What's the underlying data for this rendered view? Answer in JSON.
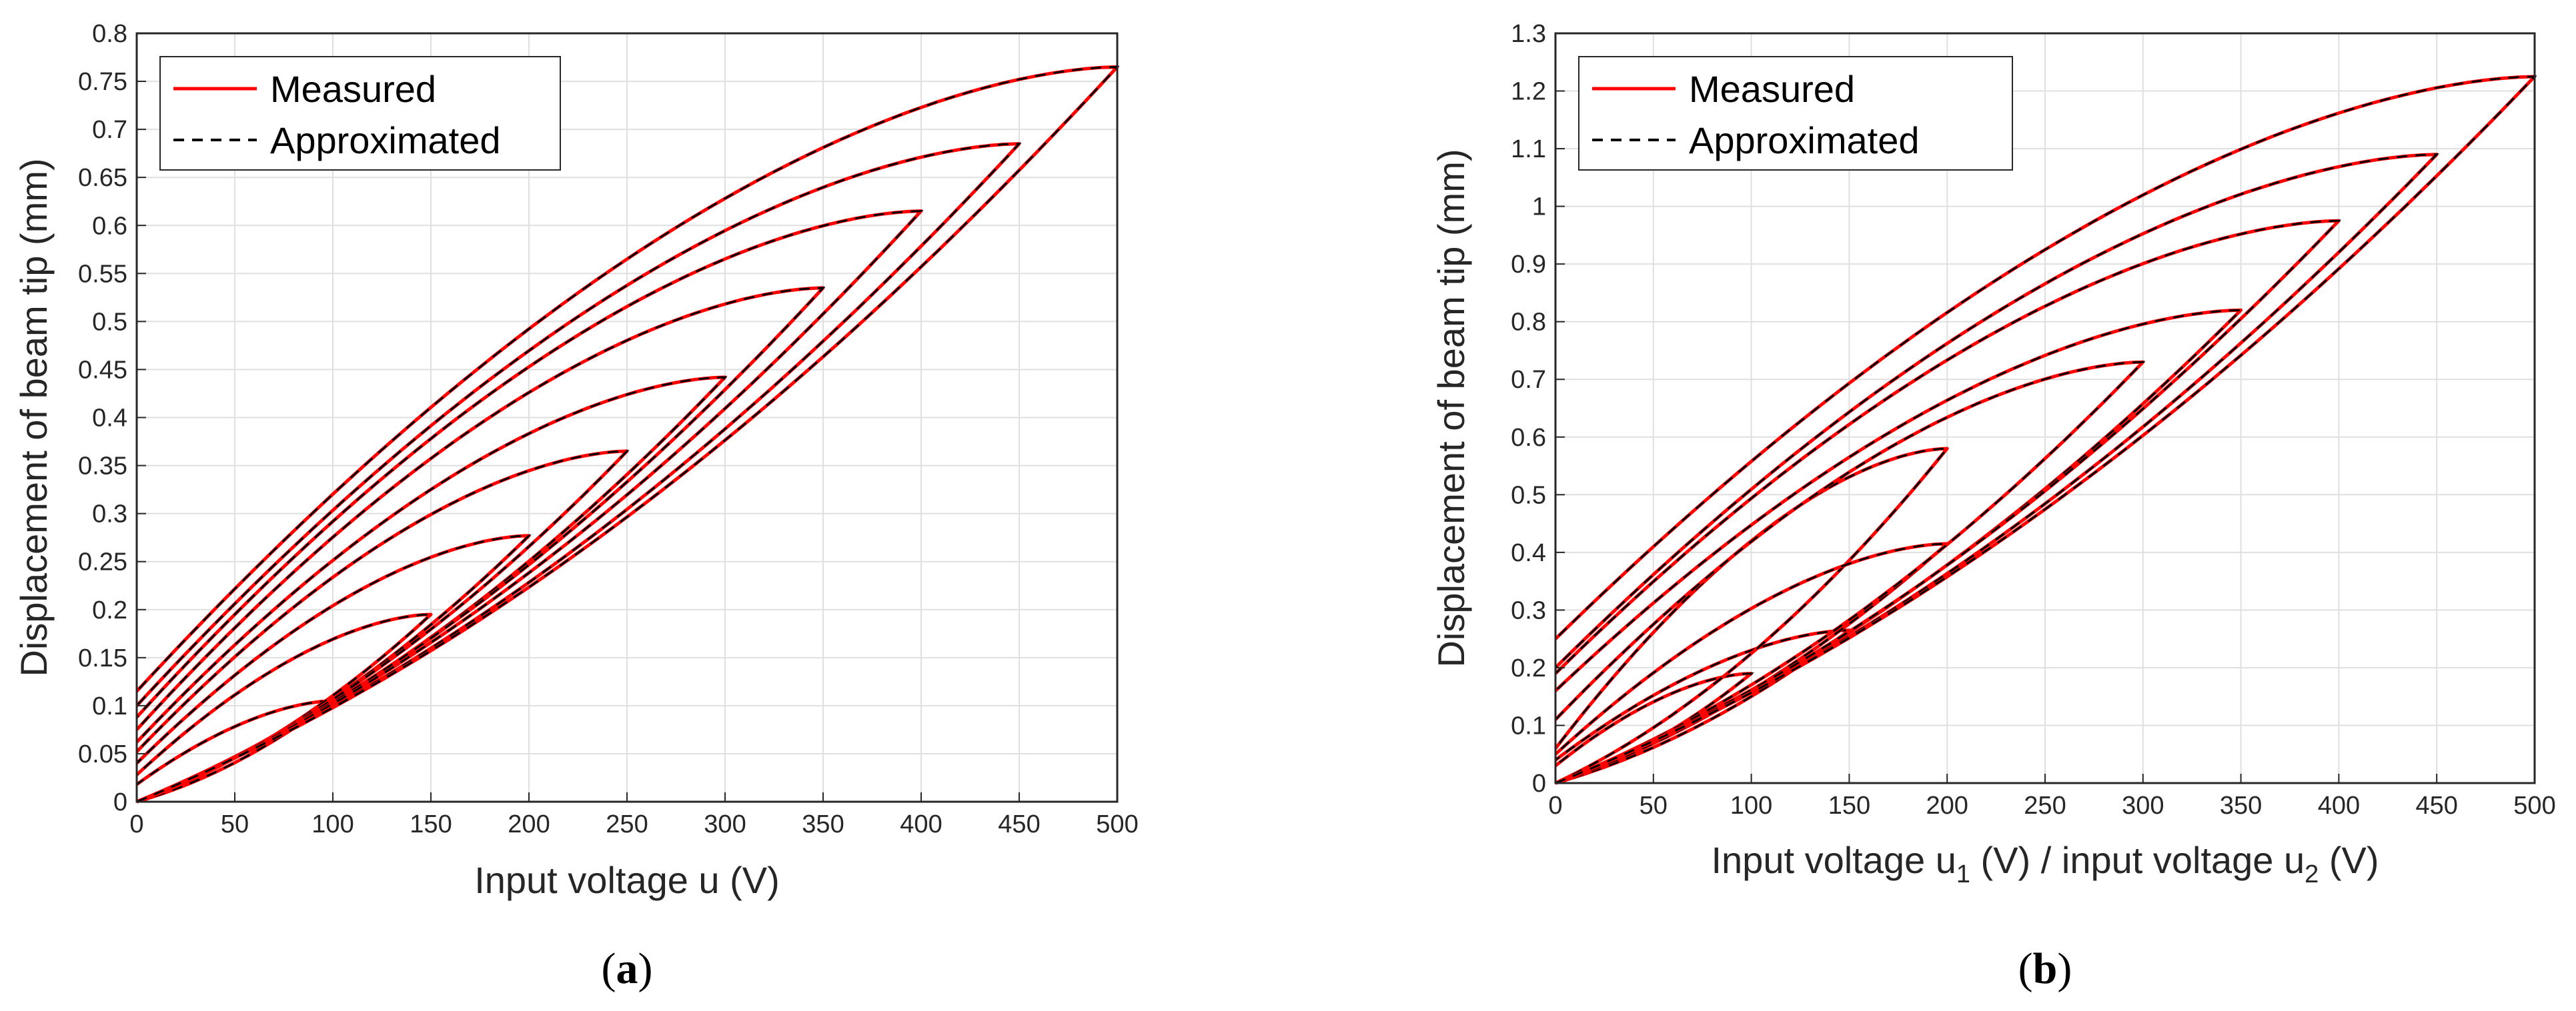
{
  "colors": {
    "measured": "#ff0000",
    "approximated": "#000000",
    "grid": "#dfdfdf",
    "axis": "#262626"
  },
  "chart_data": [
    {
      "type": "line",
      "panel_label": "a",
      "xlabel": "Input voltage u (V)",
      "ylabel": "Displacement of beam tip (mm)",
      "xlim": [
        0,
        500
      ],
      "ylim": [
        0,
        0.8
      ],
      "xticks": [
        "0",
        "50",
        "100",
        "150",
        "200",
        "250",
        "300",
        "350",
        "400",
        "450",
        "500"
      ],
      "yticks": [
        "0",
        "0.05",
        "0.1",
        "0.15",
        "0.2",
        "0.25",
        "0.3",
        "0.35",
        "0.4",
        "0.45",
        "0.5",
        "0.55",
        "0.6",
        "0.65",
        "0.7",
        "0.75",
        "0.8"
      ],
      "grid": true,
      "legend": {
        "position": "top-left",
        "entries": [
          "Measured",
          "Approximated"
        ]
      },
      "series": [
        {
          "name": "Measured",
          "style": "solid"
        },
        {
          "name": "Approximated",
          "style": "dashed"
        }
      ],
      "hysteresis_loops": [
        {
          "umax": 100,
          "ymax": 0.105,
          "y_return": 0.018
        },
        {
          "umax": 150,
          "ymax": 0.195,
          "y_return": 0.028
        },
        {
          "umax": 200,
          "ymax": 0.277,
          "y_return": 0.04
        },
        {
          "umax": 250,
          "ymax": 0.365,
          "y_return": 0.052
        },
        {
          "umax": 300,
          "ymax": 0.442,
          "y_return": 0.062
        },
        {
          "umax": 350,
          "ymax": 0.535,
          "y_return": 0.075
        },
        {
          "umax": 400,
          "ymax": 0.615,
          "y_return": 0.088
        },
        {
          "umax": 450,
          "ymax": 0.685,
          "y_return": 0.1
        },
        {
          "umax": 500,
          "ymax": 0.765,
          "y_return": 0.115
        }
      ]
    },
    {
      "type": "line",
      "panel_label": "b",
      "xlabel_main": "Input voltage u",
      "xlabel_sub1": "1",
      "xlabel_mid": " (V) / input voltage u",
      "xlabel_sub2": "2",
      "xlabel_end": " (V)",
      "ylabel": "Displacement of beam tip (mm)",
      "xlim": [
        0,
        500
      ],
      "ylim": [
        0,
        1.3
      ],
      "xticks": [
        "0",
        "50",
        "100",
        "150",
        "200",
        "250",
        "300",
        "350",
        "400",
        "450",
        "500"
      ],
      "yticks": [
        "0",
        "0.1",
        "0.2",
        "0.3",
        "0.4",
        "0.5",
        "0.6",
        "0.7",
        "0.8",
        "0.9",
        "1",
        "1.1",
        "1.2",
        "1.3"
      ],
      "grid": true,
      "legend": {
        "position": "top-left",
        "entries": [
          "Measured",
          "Approximated"
        ]
      },
      "series": [
        {
          "name": "Measured",
          "style": "solid"
        },
        {
          "name": "Approximated",
          "style": "dashed"
        }
      ],
      "hysteresis_loops": [
        {
          "umax": 100,
          "ymax": 0.19,
          "y_return": 0.03
        },
        {
          "umax": 150,
          "ymax": 0.265,
          "y_return": 0.04
        },
        {
          "umax": 200,
          "ymax": 0.58,
          "y_return": 0.06
        },
        {
          "umax": 200,
          "ymax": 0.415,
          "y_return": 0.05
        },
        {
          "umax": 300,
          "ymax": 0.73,
          "y_return": 0.11
        },
        {
          "umax": 350,
          "ymax": 0.82,
          "y_return": 0.16
        },
        {
          "umax": 400,
          "ymax": 0.975,
          "y_return": 0.19
        },
        {
          "umax": 450,
          "ymax": 1.09,
          "y_return": 0.2
        },
        {
          "umax": 500,
          "ymax": 1.225,
          "y_return": 0.25
        }
      ]
    }
  ]
}
